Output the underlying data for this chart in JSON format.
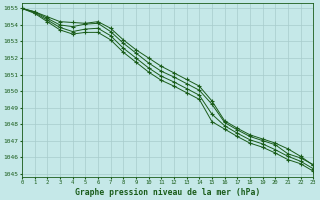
{
  "title": "Graphe pression niveau de la mer (hPa)",
  "background_color": "#c5e8e8",
  "grid_color": "#a8cccc",
  "line_color": "#1a5c1a",
  "xlim": [
    0,
    23
  ],
  "ylim": [
    1044.8,
    1055.3
  ],
  "yticks": [
    1045,
    1046,
    1047,
    1048,
    1049,
    1050,
    1051,
    1052,
    1053,
    1054,
    1055
  ],
  "xticks": [
    0,
    1,
    2,
    3,
    4,
    5,
    6,
    7,
    8,
    9,
    10,
    11,
    12,
    13,
    14,
    15,
    16,
    17,
    18,
    19,
    20,
    21,
    22,
    23
  ],
  "series": [
    [
      1055.0,
      1054.8,
      1054.5,
      1054.2,
      1054.15,
      1054.1,
      1054.2,
      1053.8,
      1053.1,
      1052.5,
      1052.0,
      1051.5,
      1051.1,
      1050.7,
      1050.3,
      1049.4,
      1048.2,
      1047.75,
      1047.35,
      1047.1,
      1046.85,
      1046.5,
      1046.05,
      1045.5
    ],
    [
      1055.0,
      1054.8,
      1054.4,
      1054.0,
      1053.9,
      1054.05,
      1054.1,
      1053.6,
      1052.9,
      1052.3,
      1051.7,
      1051.2,
      1050.85,
      1050.45,
      1050.05,
      1049.2,
      1048.1,
      1047.65,
      1047.25,
      1047.0,
      1046.75,
      1046.2,
      1045.95,
      1045.55
    ],
    [
      1055.0,
      1054.75,
      1054.3,
      1053.85,
      1053.6,
      1053.75,
      1053.8,
      1053.35,
      1052.6,
      1052.0,
      1051.4,
      1050.9,
      1050.55,
      1050.15,
      1049.75,
      1048.6,
      1047.9,
      1047.45,
      1047.05,
      1046.8,
      1046.45,
      1046.05,
      1045.75,
      1045.3
    ],
    [
      1055.0,
      1054.7,
      1054.2,
      1053.7,
      1053.45,
      1053.55,
      1053.55,
      1053.1,
      1052.35,
      1051.75,
      1051.15,
      1050.65,
      1050.3,
      1049.9,
      1049.5,
      1048.15,
      1047.7,
      1047.25,
      1046.85,
      1046.6,
      1046.25,
      1045.85,
      1045.6,
      1045.15
    ]
  ]
}
